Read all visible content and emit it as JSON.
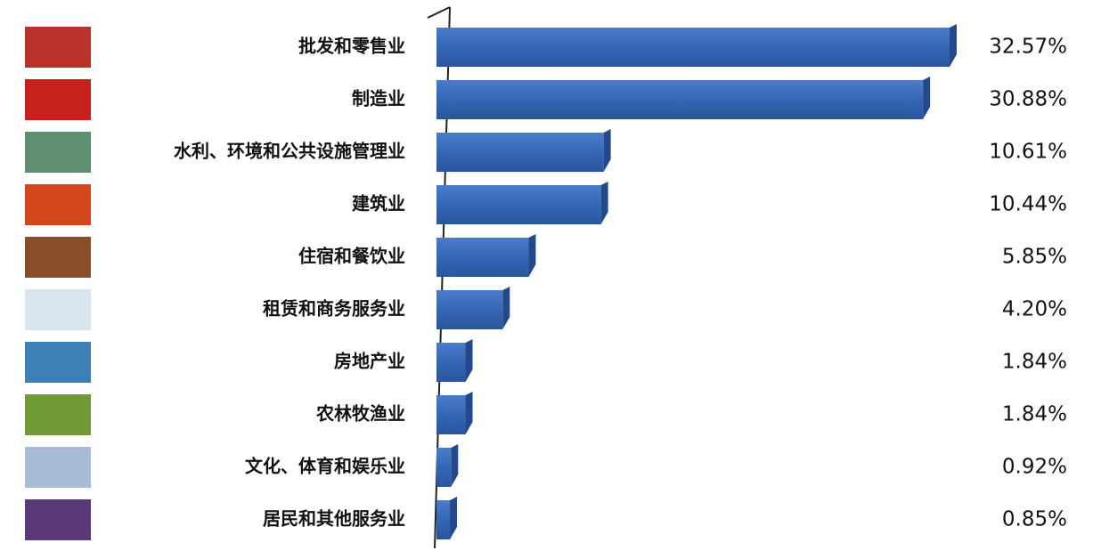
{
  "chart_data": {
    "type": "bar",
    "orientation": "horizontal",
    "categories": [
      "批发和零售业",
      "制造业",
      "水利、环境和公共设施管理业",
      "建筑业",
      "住宿和餐饮业",
      "租赁和商务服务业",
      "房地产业",
      "农林牧渔业",
      "文化、体育和娱乐业",
      "居民和其他服务业"
    ],
    "values": [
      32.57,
      30.88,
      10.61,
      10.44,
      5.85,
      4.2,
      1.84,
      1.84,
      0.92,
      0.85
    ],
    "value_labels": [
      "32.57%",
      "30.88%",
      "10.61%",
      "10.44%",
      "5.85%",
      "4.20%",
      "1.84%",
      "1.84%",
      "0.92%",
      "0.85%"
    ],
    "color": "#3566b5"
  }
}
